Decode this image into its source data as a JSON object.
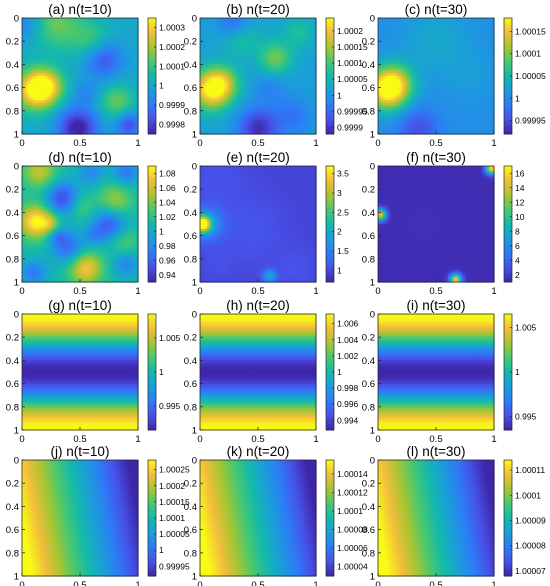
{
  "colormap": [
    "#3e26a8",
    "#4751e8",
    "#2d7cf6",
    "#1b9ed9",
    "#14b9ab",
    "#48c86f",
    "#a7c532",
    "#f2bd3c",
    "#f9fb15"
  ],
  "chart_data": [
    {
      "type": "heatmap",
      "title": "(a) n(t=10)",
      "x_ticks": [
        "0",
        "0.5",
        "1"
      ],
      "y_ticks": [
        "0",
        "0.2",
        "0.4",
        "0.6",
        "0.8",
        "1"
      ],
      "colorbar": {
        "min": 0.99975,
        "max": 1.00035,
        "ticks": [
          1.0003,
          1.0002,
          1.0001,
          1.0,
          0.9999,
          0.9998
        ],
        "labels": [
          "1.0003",
          "1.0002",
          "1.0001",
          "1",
          "0.9999",
          "0.9998"
        ]
      },
      "field": {
        "kind": "blobs",
        "base": 0.42,
        "blobs": [
          [
            0.12,
            0.62,
            0.12,
            0.6
          ],
          [
            0.22,
            0.58,
            0.1,
            0.3
          ],
          [
            0.3,
            0.05,
            0.15,
            0.25
          ],
          [
            0.6,
            0.2,
            0.12,
            0.2
          ],
          [
            0.82,
            0.72,
            0.1,
            0.25
          ],
          [
            0.48,
            0.95,
            0.12,
            -0.45
          ],
          [
            0.7,
            0.35,
            0.12,
            -0.3
          ],
          [
            0.92,
            0.92,
            0.08,
            -0.3
          ],
          [
            0.05,
            0.05,
            0.1,
            -0.15
          ],
          [
            0.55,
            0.65,
            0.08,
            -0.12
          ]
        ]
      }
    },
    {
      "type": "heatmap",
      "title": "(b) n(t=20)",
      "x_ticks": [
        "0",
        "0.5",
        "1"
      ],
      "y_ticks": [
        "0",
        "0.2",
        "0.4",
        "0.6",
        "0.8",
        "1"
      ],
      "colorbar": {
        "min": 0.99988,
        "max": 1.00024,
        "ticks": [
          1.0002,
          1.00015,
          1.0001,
          1.00005,
          1.0,
          0.99995,
          0.9999
        ],
        "labels": [
          "1.0002",
          "1.00015",
          "1.0001",
          "1.00005",
          "1",
          "0.99995",
          "0.9999"
        ]
      },
      "field": {
        "kind": "blobs",
        "base": 0.38,
        "blobs": [
          [
            0.1,
            0.62,
            0.12,
            0.6
          ],
          [
            0.2,
            0.55,
            0.1,
            0.25
          ],
          [
            0.65,
            0.35,
            0.1,
            0.3
          ],
          [
            0.35,
            0.15,
            0.12,
            0.2
          ],
          [
            0.85,
            0.12,
            0.1,
            0.15
          ],
          [
            0.5,
            0.95,
            0.12,
            -0.35
          ],
          [
            0.3,
            0.05,
            0.1,
            -0.25
          ],
          [
            0.8,
            0.85,
            0.12,
            -0.15
          ],
          [
            0.6,
            0.6,
            0.1,
            -0.1
          ]
        ]
      }
    },
    {
      "type": "heatmap",
      "title": "(c) n(t=30)",
      "x_ticks": [
        "0",
        "0.5",
        "1"
      ],
      "y_ticks": [
        "0",
        "0.2",
        "0.4",
        "0.6",
        "0.8",
        "1"
      ],
      "colorbar": {
        "min": 0.99992,
        "max": 1.00018,
        "ticks": [
          1.00015,
          1.0001,
          1.00005,
          1.0,
          0.99995
        ],
        "labels": [
          "1.00015",
          "1.0001",
          "1.00005",
          "1",
          "0.99995"
        ]
      },
      "field": {
        "kind": "blobs",
        "base": 0.32,
        "blobs": [
          [
            0.08,
            0.62,
            0.12,
            0.65
          ],
          [
            0.15,
            0.55,
            0.12,
            0.3
          ],
          [
            0.5,
            0.2,
            0.2,
            0.1
          ],
          [
            0.35,
            0.95,
            0.12,
            -0.2
          ],
          [
            0.8,
            0.5,
            0.15,
            0.05
          ]
        ]
      }
    },
    {
      "type": "heatmap",
      "title": "(d) n(t=10)",
      "x_ticks": [
        "0",
        "0.5",
        "1"
      ],
      "y_ticks": [
        "0",
        "0.2",
        "0.4",
        "0.6",
        "0.8",
        "1"
      ],
      "colorbar": {
        "min": 0.93,
        "max": 1.09,
        "ticks": [
          1.08,
          1.06,
          1.04,
          1.02,
          1.0,
          0.98,
          0.96,
          0.94
        ],
        "labels": [
          "1.08",
          "1.06",
          "1.04",
          "1.02",
          "1",
          "0.98",
          "0.96",
          "0.94"
        ]
      },
      "field": {
        "kind": "blobs",
        "base": 0.5,
        "blobs": [
          [
            0.12,
            0.48,
            0.1,
            0.5
          ],
          [
            0.55,
            0.88,
            0.1,
            0.4
          ],
          [
            0.15,
            0.05,
            0.1,
            0.3
          ],
          [
            0.8,
            0.3,
            0.1,
            0.25
          ],
          [
            0.5,
            0.35,
            0.08,
            0.15
          ],
          [
            0.35,
            0.28,
            0.1,
            -0.4
          ],
          [
            0.75,
            0.5,
            0.1,
            -0.35
          ],
          [
            0.4,
            0.7,
            0.1,
            -0.3
          ],
          [
            0.1,
            0.92,
            0.08,
            -0.25
          ],
          [
            0.6,
            0.05,
            0.08,
            -0.2
          ],
          [
            0.9,
            0.05,
            0.08,
            -0.25
          ],
          [
            0.9,
            0.85,
            0.08,
            -0.2
          ],
          [
            0.25,
            0.5,
            0.06,
            0.2
          ],
          [
            0.3,
            0.6,
            0.06,
            -0.2
          ],
          [
            0.88,
            0.65,
            0.08,
            0.15
          ],
          [
            0.62,
            0.6,
            0.06,
            -0.15
          ]
        ]
      }
    },
    {
      "type": "heatmap",
      "title": "(e) n(t=20)",
      "x_ticks": [
        "0",
        "0.5",
        "1"
      ],
      "y_ticks": [
        "0",
        "0.2",
        "0.4",
        "0.6",
        "0.8",
        "1"
      ],
      "colorbar": {
        "min": 0.7,
        "max": 3.7,
        "ticks": [
          3.5,
          3.0,
          2.5,
          2.0,
          1.5,
          1.0
        ],
        "labels": [
          "3.5",
          "3",
          "2.5",
          "2",
          "1.5",
          "1"
        ]
      },
      "field": {
        "kind": "blobs",
        "base": 0.09,
        "blobs": [
          [
            0.02,
            0.5,
            0.05,
            0.9
          ],
          [
            0.06,
            0.5,
            0.1,
            0.25
          ],
          [
            0.6,
            0.95,
            0.04,
            0.3
          ],
          [
            0.15,
            0.1,
            0.18,
            0.04
          ],
          [
            0.45,
            0.55,
            0.2,
            0.05
          ],
          [
            0.82,
            0.88,
            0.12,
            0.04
          ],
          [
            0.15,
            0.85,
            0.1,
            0.03
          ]
        ]
      }
    },
    {
      "type": "heatmap",
      "title": "(f) n(t=30)",
      "x_ticks": [
        "0",
        "0.5",
        "1"
      ],
      "y_ticks": [
        "0",
        "0.2",
        "0.4",
        "0.6",
        "0.8",
        "1"
      ],
      "colorbar": {
        "min": 1.0,
        "max": 17.0,
        "ticks": [
          16,
          14,
          12,
          10,
          8,
          6,
          4,
          2
        ],
        "labels": [
          "16",
          "14",
          "12",
          "10",
          "8",
          "6",
          "4",
          "2"
        ]
      },
      "field": {
        "kind": "blobs",
        "base": 0.02,
        "blobs": [
          [
            0.02,
            0.42,
            0.035,
            0.85
          ],
          [
            0.98,
            0.02,
            0.035,
            0.95
          ],
          [
            0.67,
            0.98,
            0.035,
            0.9
          ],
          [
            0.4,
            0.5,
            0.2,
            0.01
          ]
        ]
      }
    },
    {
      "type": "heatmap",
      "title": "(g) n(t=10)",
      "x_ticks": [
        "0",
        "0.5",
        "1"
      ],
      "y_ticks": [
        "0",
        "0.2",
        "0.4",
        "0.6",
        "0.8",
        "1"
      ],
      "colorbar": {
        "min": 0.9915,
        "max": 1.0085,
        "ticks": [
          1.005,
          1.0,
          0.995
        ],
        "labels": [
          "1.005",
          "1",
          "0.995"
        ]
      },
      "field": {
        "kind": "bands"
      }
    },
    {
      "type": "heatmap",
      "title": "(h) n(t=20)",
      "x_ticks": [
        "0",
        "0.5",
        "1"
      ],
      "y_ticks": [
        "0",
        "0.2",
        "0.4",
        "0.6",
        "0.8",
        "1"
      ],
      "colorbar": {
        "min": 0.9928,
        "max": 1.0072,
        "ticks": [
          1.006,
          1.004,
          1.002,
          1.0,
          0.998,
          0.996,
          0.994
        ],
        "labels": [
          "1.006",
          "1.004",
          "1.002",
          "1",
          "0.998",
          "0.996",
          "0.994"
        ]
      },
      "field": {
        "kind": "bands"
      }
    },
    {
      "type": "heatmap",
      "title": "(i) n(t=30)",
      "x_ticks": [
        "0",
        "0.5",
        "1"
      ],
      "y_ticks": [
        "0",
        "0.2",
        "0.4",
        "0.6",
        "0.8",
        "1"
      ],
      "colorbar": {
        "min": 0.9935,
        "max": 1.0065,
        "ticks": [
          1.005,
          1.0,
          0.995
        ],
        "labels": [
          "1.005",
          "1",
          "0.995"
        ]
      },
      "field": {
        "kind": "bands"
      }
    },
    {
      "type": "heatmap",
      "title": "(j) n(t=10)",
      "x_ticks": [
        "0",
        "0.5",
        "1"
      ],
      "y_ticks": [
        "0",
        "0.2",
        "0.4",
        "0.6",
        "0.8",
        "1"
      ],
      "colorbar": {
        "min": 0.99992,
        "max": 1.00028,
        "ticks": [
          1.00025,
          1.0002,
          1.00015,
          1.0001,
          1.00005,
          1.0,
          0.99995
        ],
        "labels": [
          "1.00025",
          "1.0002",
          "1.00015",
          "1.0001",
          "1.00005",
          "1",
          "0.99995"
        ]
      },
      "field": {
        "kind": "gradient"
      }
    },
    {
      "type": "heatmap",
      "title": "(k) n(t=20)",
      "x_ticks": [
        "0",
        "0.5",
        "1"
      ],
      "y_ticks": [
        "0",
        "0.2",
        "0.4",
        "0.6",
        "0.8",
        "1"
      ],
      "colorbar": {
        "min": 1.00003,
        "max": 1.000155,
        "ticks": [
          1.00014,
          1.00012,
          1.0001,
          1.00008,
          1.00006,
          1.00004
        ],
        "labels": [
          "1.00014",
          "1.00012",
          "1.0001",
          "1.00008",
          "1.00006",
          "1.00004"
        ]
      },
      "field": {
        "kind": "gradient"
      }
    },
    {
      "type": "heatmap",
      "title": "(l) n(t=30)",
      "x_ticks": [
        "0",
        "0.5",
        "1"
      ],
      "y_ticks": [
        "0",
        "0.2",
        "0.4",
        "0.6",
        "0.8",
        "1"
      ],
      "colorbar": {
        "min": 1.000068,
        "max": 1.000114,
        "ticks": [
          1.00011,
          1.0001,
          1.00009,
          1.00008,
          1.00007
        ],
        "labels": [
          "1.00011",
          "1.0001",
          "1.00009",
          "1.00008",
          "1.00007"
        ]
      },
      "field": {
        "kind": "gradient"
      }
    }
  ]
}
